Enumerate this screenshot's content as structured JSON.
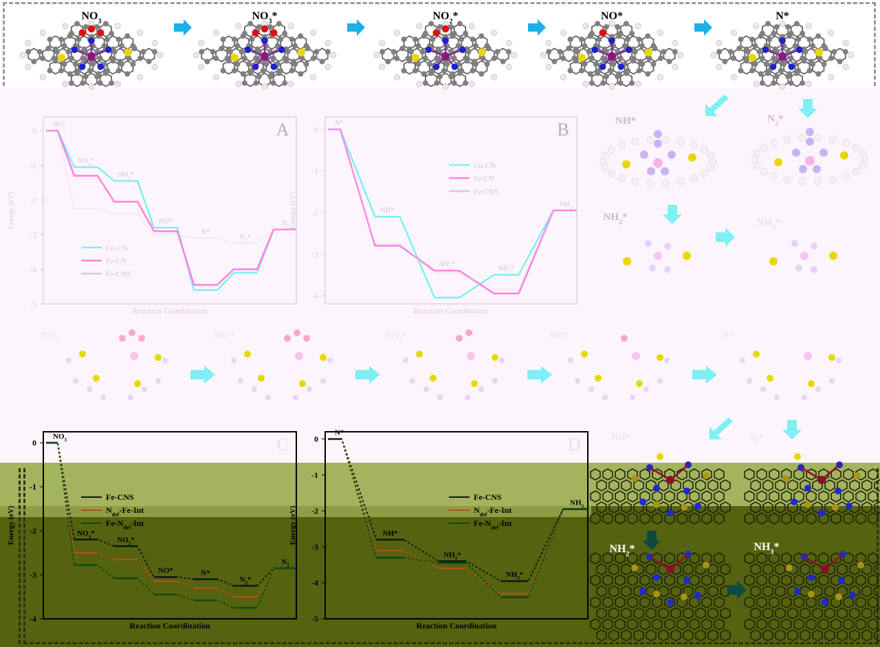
{
  "top_row": {
    "labels": [
      "NO3",
      "NO3*",
      "NO2*",
      "NO*",
      "N*"
    ]
  },
  "colors": {
    "carbon": "#808080",
    "hydrogen": "#e8e8e8",
    "nitrogen": "#2020d0",
    "oxygen": "#e01010",
    "sulfur": "#e8d800",
    "metal_top": "#8a1a7a",
    "arrow": "#1ab0e8",
    "cu_cn": "#7ff0f0",
    "fe_cn": "#ff80e0",
    "fe_cns_faint": "#d6c6e8",
    "fe_cns": "#0a1a10",
    "ndef_fe_int": "#b05020",
    "fe_ndef_int": "#0a4a10"
  },
  "right_molecules": {
    "top_labels": [
      "NH*",
      "N2*",
      "NH2*",
      "NH3*"
    ],
    "bottom_labels": [
      "NH2*",
      "NH3*"
    ]
  },
  "middle_row": {
    "labels": [
      "NO3",
      "NO3*",
      "NO2*",
      "NO*",
      "N*"
    ],
    "right_labels": [
      "NH*",
      "N2*"
    ]
  },
  "chart_data": [
    {
      "panel_label": "A",
      "type": "line",
      "xlabel": "Reaction Coordination",
      "ylabel": "Energy (eV)",
      "ylim": [
        -5,
        0.4
      ],
      "y_ticks": [
        "0",
        "-1",
        "-2",
        "-3",
        "-4",
        "-5"
      ],
      "step_labels": [
        "NO3",
        "NO3*",
        "NO2*",
        "NO*",
        "N*",
        "N2*",
        "N2"
      ],
      "legend": [
        "Cu-CN",
        "Fe-CN",
        "Fe-CNS"
      ],
      "series": [
        {
          "name": "Cu-CN",
          "values": [
            0,
            -1.05,
            -1.45,
            -2.8,
            -4.6,
            -4.1,
            -2.85
          ]
        },
        {
          "name": "Fe-CN",
          "values": [
            0,
            -1.3,
            -2.05,
            -2.9,
            -4.45,
            -4.0,
            -2.85
          ]
        },
        {
          "name": "Fe-CNS",
          "values": [
            0,
            -2.25,
            -2.4,
            -3.0,
            -3.1,
            -3.25,
            -2.85
          ]
        }
      ]
    },
    {
      "panel_label": "B",
      "type": "line",
      "xlabel": "Reaction Coordination",
      "ylabel": "Energy (eV)",
      "ylim": [
        -4.2,
        0.3
      ],
      "y_ticks": [
        "0",
        "-1",
        "-2",
        "-3",
        "-4"
      ],
      "step_labels": [
        "N*",
        "NH*",
        "NH2*",
        "NH3*",
        "NH3"
      ],
      "legend": [
        "Cu-CN",
        "Fe-CN",
        "Fe-CNS"
      ],
      "series": [
        {
          "name": "Cu-CN",
          "values": [
            0,
            -2.1,
            -4.05,
            -3.5,
            -1.95
          ]
        },
        {
          "name": "Fe-CN",
          "values": [
            0,
            -2.8,
            -3.4,
            -3.95,
            -1.95
          ]
        },
        {
          "name": "Fe-CNS",
          "values": [
            0,
            -2.75,
            -3.45,
            -3.85,
            -1.95
          ]
        }
      ]
    },
    {
      "panel_label": "C",
      "type": "line",
      "xlabel": "Reaction Coordination",
      "ylabel": "Energy (eV)",
      "ylim": [
        -4,
        0.25
      ],
      "y_ticks": [
        "0",
        "-1",
        "-2",
        "-3",
        "-4"
      ],
      "step_labels": [
        "NO3",
        "NO3*",
        "NO2*",
        "NO*",
        "N*",
        "N2*",
        "N2"
      ],
      "legend": [
        "Fe-CNS",
        "Ndef-Fe-Int",
        "Fe-Ndef-Int"
      ],
      "series": [
        {
          "name": "Fe-CNS",
          "values": [
            0,
            -2.2,
            -2.35,
            -3.05,
            -3.1,
            -3.25,
            -2.85
          ]
        },
        {
          "name": "Ndef-Fe-Int",
          "values": [
            0,
            -2.5,
            -2.65,
            -3.15,
            -3.3,
            -3.5,
            -2.85
          ]
        },
        {
          "name": "Fe-Ndef-Int",
          "values": [
            0,
            -2.78,
            -3.08,
            -3.45,
            -3.58,
            -3.75,
            -2.85
          ]
        }
      ]
    },
    {
      "panel_label": "D",
      "type": "line",
      "xlabel": "Reaction Coordination",
      "ylabel": "Energy (eV)",
      "ylim": [
        -5,
        0.2
      ],
      "y_ticks": [
        "0",
        "-1",
        "-2",
        "-3",
        "-4",
        "-5"
      ],
      "step_labels": [
        "N*",
        "NH*",
        "NH2*",
        "NH3*",
        "NH3"
      ],
      "legend": [
        "Fe-CNS",
        "Ndef-Fe-Int",
        "Fe-Ndef-Int"
      ],
      "series": [
        {
          "name": "Fe-CNS",
          "values": [
            0,
            -2.8,
            -3.4,
            -3.95,
            -1.95
          ]
        },
        {
          "name": "Ndef-Fe-Int",
          "values": [
            0,
            -3.1,
            -3.6,
            -4.3,
            -1.95
          ]
        },
        {
          "name": "Fe-Ndef-Int",
          "values": [
            0,
            -3.3,
            -3.45,
            -4.4,
            -1.95
          ]
        }
      ]
    }
  ]
}
